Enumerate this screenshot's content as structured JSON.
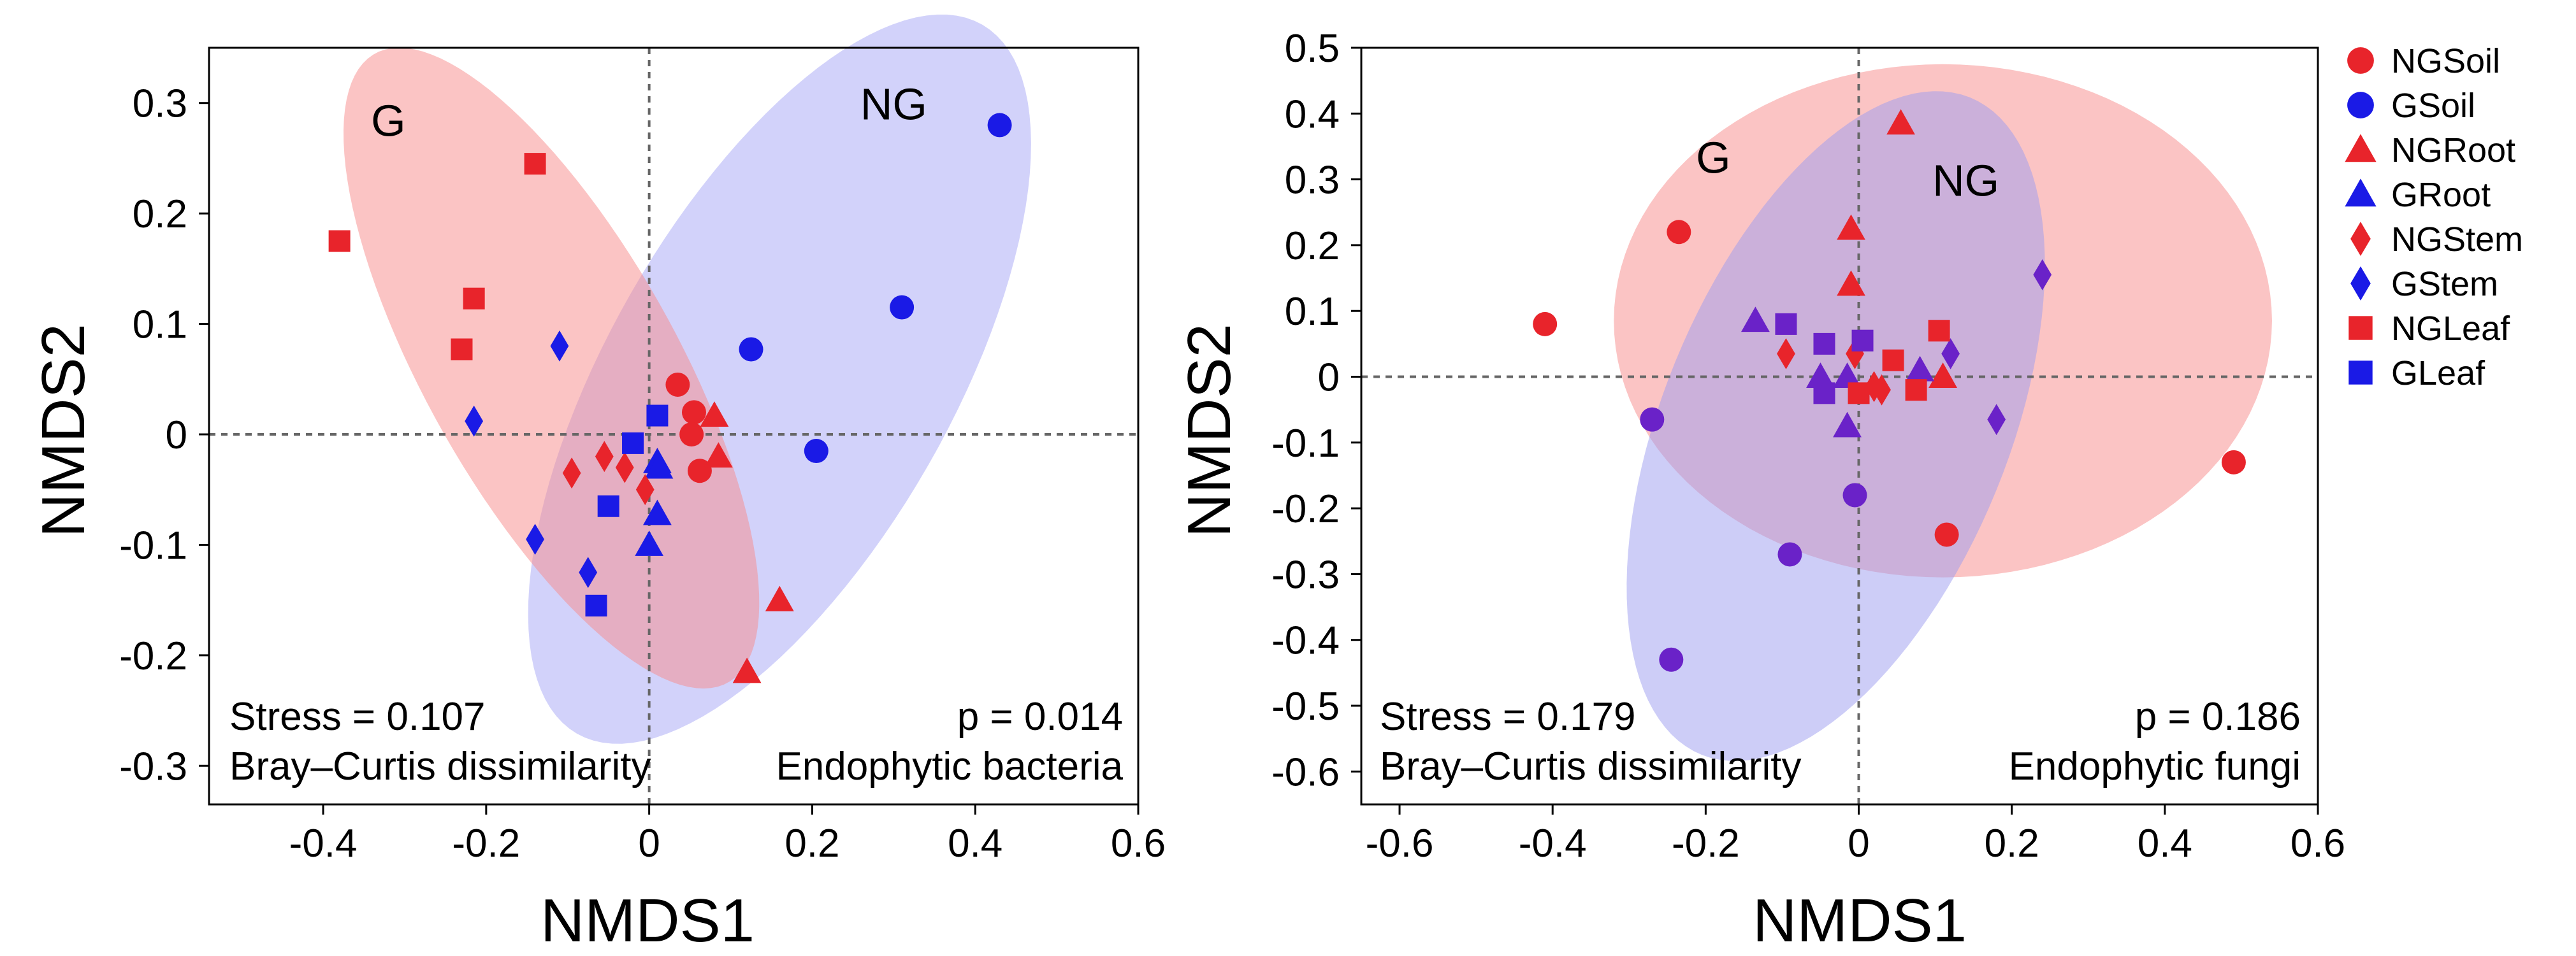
{
  "colors": {
    "ng": "#e8242b",
    "g": "#1a1ae6",
    "mix": "#6a22c8",
    "ellipse_g": "#f78a8a",
    "ellipse_ng": "#a6a6f5",
    "ellipse_fungi_ng": "#f78a8a",
    "ellipse_fungi_g": "#9c9cf0"
  },
  "legend": {
    "items": [
      {
        "label": "NGSoil",
        "group": "NG",
        "marker": "circle-marker"
      },
      {
        "label": "GSoil",
        "group": "G",
        "marker": "circle-marker"
      },
      {
        "label": "NGRoot",
        "group": "NG",
        "marker": "triangle-marker"
      },
      {
        "label": "GRoot",
        "group": "G",
        "marker": "triangle-marker"
      },
      {
        "label": "NGStem",
        "group": "NG",
        "marker": "diamond-marker"
      },
      {
        "label": "GStem",
        "group": "G",
        "marker": "diamond-marker"
      },
      {
        "label": "NGLeaf",
        "group": "NG",
        "marker": "square-marker"
      },
      {
        "label": "GLeaf",
        "group": "G",
        "marker": "square-marker"
      }
    ]
  },
  "chart_data": [
    {
      "type": "scatter",
      "xlabel": "NMDS1",
      "ylabel": "NMDS2",
      "xlim": [
        -0.54,
        0.6
      ],
      "ylim": [
        -0.335,
        0.35
      ],
      "xticks": [
        -0.4,
        -0.2,
        0,
        0.2,
        0.4,
        0.6
      ],
      "yticks": [
        0.3,
        0.2,
        0.1,
        0,
        -0.1,
        -0.2,
        -0.3
      ],
      "xtick_labels": [
        "-0.4",
        "-0.2",
        "0",
        "0.2",
        "0.4",
        "0.6"
      ],
      "ytick_labels": [
        "0.3",
        "0.2",
        "0.1",
        "0",
        "-0.1",
        "-0.2",
        "-0.3"
      ],
      "stress": "Stress = 0.107",
      "metric": "Bray–Curtis dissimilarity",
      "p_value": "p = 0.014",
      "subtitle": "Endophytic bacteria",
      "group_labels": [
        {
          "text": "G",
          "x": -0.32,
          "y": 0.27
        },
        {
          "text": "NG",
          "x": 0.3,
          "y": 0.285
        }
      ],
      "ellipses": [
        {
          "group": "NG",
          "cx": 0.16,
          "cy": 0.05,
          "rx": 0.41,
          "ry": 0.19,
          "angle": 48,
          "color_key": "ellipse_ng"
        },
        {
          "group": "G",
          "cx": -0.12,
          "cy": 0.06,
          "rx": 0.36,
          "ry": 0.14,
          "angle": -50,
          "color_key": "ellipse_g"
        }
      ],
      "series": [
        {
          "name": "NGSoil",
          "marker": "circle",
          "color_key": "ng",
          "points": [
            [
              0.035,
              0.045
            ],
            [
              0.055,
              0.02
            ],
            [
              0.052,
              0.0
            ],
            [
              0.062,
              -0.033
            ]
          ]
        },
        {
          "name": "GSoil",
          "marker": "circle",
          "color_key": "g",
          "points": [
            [
              0.43,
              0.28
            ],
            [
              0.31,
              0.115
            ],
            [
              0.125,
              0.077
            ],
            [
              0.205,
              -0.015
            ]
          ]
        },
        {
          "name": "NGRoot",
          "marker": "triangle",
          "color_key": "ng",
          "points": [
            [
              0.08,
              0.017
            ],
            [
              0.085,
              -0.02
            ],
            [
              0.16,
              -0.15
            ],
            [
              0.12,
              -0.215
            ]
          ]
        },
        {
          "name": "GRoot",
          "marker": "triangle",
          "color_key": "g",
          "points": [
            [
              0.01,
              -0.025
            ],
            [
              0.01,
              -0.072
            ],
            [
              0.0,
              -0.1
            ],
            [
              0.012,
              -0.03
            ]
          ]
        },
        {
          "name": "NGStem",
          "marker": "diamond",
          "color_key": "ng",
          "points": [
            [
              -0.095,
              -0.035
            ],
            [
              -0.055,
              -0.02
            ],
            [
              -0.03,
              -0.03
            ],
            [
              -0.005,
              -0.05
            ]
          ]
        },
        {
          "name": "GStem",
          "marker": "diamond",
          "color_key": "g",
          "points": [
            [
              -0.11,
              0.08
            ],
            [
              -0.215,
              0.012
            ],
            [
              -0.14,
              -0.095
            ],
            [
              -0.075,
              -0.125
            ]
          ]
        },
        {
          "name": "NGLeaf",
          "marker": "square",
          "color_key": "ng",
          "points": [
            [
              -0.14,
              0.245
            ],
            [
              -0.38,
              0.175
            ],
            [
              -0.215,
              0.123
            ],
            [
              -0.23,
              0.077
            ]
          ]
        },
        {
          "name": "GLeaf",
          "marker": "square",
          "color_key": "g",
          "points": [
            [
              0.01,
              0.017
            ],
            [
              -0.02,
              -0.008
            ],
            [
              -0.05,
              -0.065
            ],
            [
              -0.065,
              -0.155
            ]
          ]
        }
      ]
    },
    {
      "type": "scatter",
      "xlabel": "NMDS1",
      "ylabel": "NMDS2",
      "xlim": [
        -0.65,
        0.6
      ],
      "ylim": [
        -0.65,
        0.5
      ],
      "xticks": [
        -0.6,
        -0.4,
        -0.2,
        0,
        0.2,
        0.4,
        0.6
      ],
      "yticks": [
        0.5,
        0.4,
        0.3,
        0.2,
        0.1,
        0,
        -0.1,
        -0.2,
        -0.3,
        -0.4,
        -0.5,
        -0.6
      ],
      "xtick_labels": [
        "-0.6",
        "-0.4",
        "-0.2",
        "0",
        "0.2",
        "0.4",
        "0.6"
      ],
      "ytick_labels": [
        "0.5",
        "0.4",
        "0.3",
        "0.2",
        "0.1",
        "0",
        "-0.1",
        "-0.2",
        "-0.3",
        "-0.4",
        "-0.5",
        "-0.6"
      ],
      "stress": "Stress = 0.179",
      "metric": "Bray–Curtis dissimilarity",
      "p_value": "p = 0.186",
      "subtitle": "Endophytic fungi",
      "group_labels": [
        {
          "text": "G",
          "x": -0.19,
          "y": 0.31
        },
        {
          "text": "NG",
          "x": 0.14,
          "y": 0.275
        }
      ],
      "ellipses": [
        {
          "group": "NG",
          "cx": 0.11,
          "cy": 0.085,
          "rx": 0.43,
          "ry": 0.39,
          "angle": 0,
          "color_key": "ellipse_fungi_ng"
        },
        {
          "group": "G",
          "cx": -0.03,
          "cy": -0.075,
          "rx": 0.53,
          "ry": 0.23,
          "angle": 72,
          "color_key": "ellipse_fungi_g"
        }
      ],
      "series": [
        {
          "name": "NGSoil",
          "marker": "circle",
          "color_key": "ng",
          "points": [
            [
              -0.41,
              0.08
            ],
            [
              -0.235,
              0.22
            ],
            [
              0.49,
              -0.13
            ],
            [
              0.115,
              -0.24
            ]
          ]
        },
        {
          "name": "GSoil",
          "marker": "circle",
          "color_key": "mix",
          "points": [
            [
              -0.27,
              -0.065
            ],
            [
              -0.09,
              -0.27
            ],
            [
              -0.005,
              -0.18
            ],
            [
              -0.245,
              -0.43
            ]
          ]
        },
        {
          "name": "NGRoot",
          "marker": "triangle",
          "color_key": "ng",
          "points": [
            [
              0.055,
              0.385
            ],
            [
              -0.01,
              0.225
            ],
            [
              -0.01,
              0.14
            ],
            [
              0.11,
              0.0
            ]
          ]
        },
        {
          "name": "GRoot",
          "marker": "triangle",
          "color_key": "mix",
          "points": [
            [
              -0.135,
              0.085
            ],
            [
              -0.05,
              0.0
            ],
            [
              -0.015,
              0.0
            ],
            [
              0.08,
              0.01
            ],
            [
              -0.015,
              -0.075
            ]
          ]
        },
        {
          "name": "NGStem",
          "marker": "diamond",
          "color_key": "ng",
          "points": [
            [
              -0.095,
              0.035
            ],
            [
              -0.005,
              0.035
            ],
            [
              0.02,
              -0.015
            ],
            [
              0.03,
              -0.02
            ]
          ]
        },
        {
          "name": "GStem",
          "marker": "diamond",
          "color_key": "mix",
          "points": [
            [
              0.24,
              0.155
            ],
            [
              0.12,
              0.035
            ],
            [
              0.18,
              -0.065
            ]
          ]
        },
        {
          "name": "NGLeaf",
          "marker": "square",
          "color_key": "ng",
          "points": [
            [
              0.105,
              0.07
            ],
            [
              0.045,
              0.025
            ],
            [
              0.0,
              -0.025
            ],
            [
              0.075,
              -0.02
            ]
          ]
        },
        {
          "name": "GLeaf",
          "marker": "square",
          "color_key": "mix",
          "points": [
            [
              -0.095,
              0.08
            ],
            [
              -0.045,
              0.05
            ],
            [
              -0.045,
              -0.025
            ],
            [
              0.005,
              0.055
            ]
          ]
        }
      ]
    }
  ]
}
